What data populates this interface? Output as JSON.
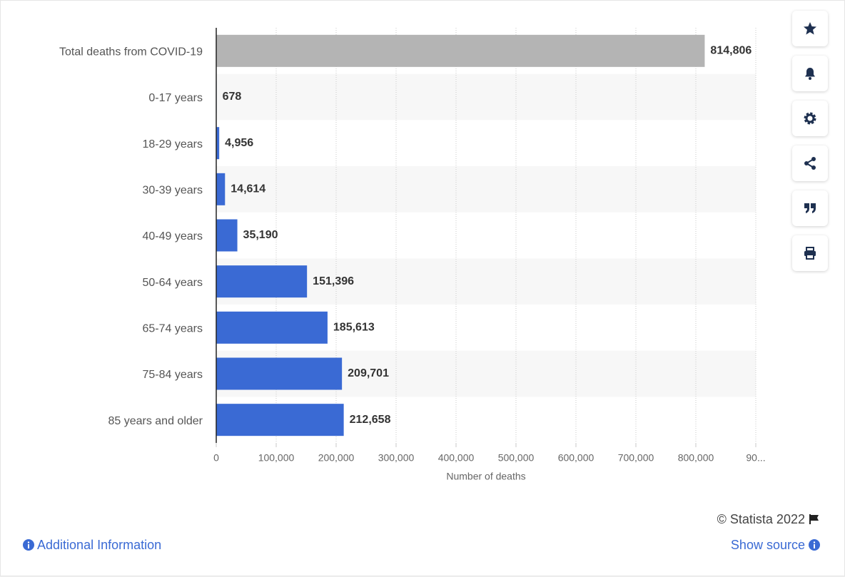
{
  "chart_data": {
    "type": "bar",
    "orientation": "horizontal",
    "categories": [
      "Total deaths from COVID-19",
      "0-17 years",
      "18-29 years",
      "30-39 years",
      "40-49 years",
      "50-64 years",
      "65-74 years",
      "75-84 years",
      "85 years and older"
    ],
    "values": [
      814806,
      678,
      4956,
      14614,
      35190,
      151396,
      185613,
      209701,
      212658
    ],
    "value_labels": [
      "814,806",
      "678",
      "4,956",
      "14,614",
      "35,190",
      "151,396",
      "185,613",
      "209,701",
      "212,658"
    ],
    "colors": [
      "#b4b4b4",
      "#3a6ad4",
      "#3a6ad4",
      "#3a6ad4",
      "#3a6ad4",
      "#3a6ad4",
      "#3a6ad4",
      "#3a6ad4",
      "#3a6ad4"
    ],
    "xlabel": "Number of deaths",
    "xlim": [
      0,
      900000
    ],
    "xticks": [
      0,
      {
        "value": 100000,
        "label": "100,000"
      },
      {
        "value": 200000,
        "label": "200,000"
      },
      {
        "value": 300000,
        "label": "300,000"
      },
      {
        "value": 400000,
        "label": "400,000"
      },
      {
        "value": 500000,
        "label": "500,000"
      },
      {
        "value": 600000,
        "label": "600,000"
      },
      {
        "value": 700000,
        "label": "700,000"
      },
      {
        "value": 800000,
        "label": "800,000"
      },
      {
        "value": 900000,
        "label": "90..."
      }
    ],
    "grid": true
  },
  "footer": {
    "copyright": "© Statista 2022",
    "additional_info": "Additional Information",
    "show_source": "Show source"
  }
}
